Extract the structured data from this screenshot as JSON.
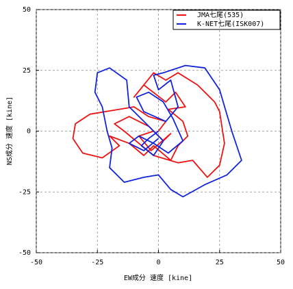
{
  "chart_data": {
    "type": "line",
    "xlabel": "EW成分 速度 [kine]",
    "ylabel": "NS成分 速度 [kine]",
    "xlim": [
      -50,
      50
    ],
    "ylim": [
      -50,
      50
    ],
    "xticks": [
      -50,
      -25,
      0,
      25,
      50
    ],
    "yticks": [
      -50,
      -25,
      0,
      25,
      50
    ],
    "grid": true,
    "legend": "upper right",
    "series": [
      {
        "name": "JMA七尾(535)",
        "color": "#ee1111",
        "x": [
          0,
          3,
          -4,
          -10,
          -16,
          -28,
          -34,
          -35,
          -31,
          -23,
          -16,
          -20,
          -12,
          -6,
          -2,
          5,
          8,
          12,
          10,
          4,
          11,
          7,
          3,
          -6,
          -10,
          -2,
          3,
          8,
          16,
          23,
          25,
          27,
          25,
          20,
          14,
          8,
          -2,
          -8,
          -14,
          -18,
          -12,
          -4,
          2,
          5,
          -3,
          -8,
          -2
        ],
        "y": [
          0,
          4,
          6,
          10,
          9,
          7,
          3,
          -3,
          -9,
          -11,
          -6,
          -2,
          -5,
          -10,
          -6,
          -12,
          -6,
          -2,
          4,
          9,
          10,
          16,
          12,
          19,
          14,
          24,
          21,
          24,
          19,
          12,
          8,
          -5,
          -14,
          -19,
          -12,
          -13,
          -10,
          -5,
          0,
          3,
          6,
          2,
          -4,
          -1,
          -8,
          -2,
          0
        ]
      },
      {
        "name": "K-NET七尾(ISK007)",
        "color": "#1122dd",
        "x": [
          0,
          -4,
          -7,
          -2,
          2,
          -5,
          -12,
          -13,
          -20,
          -25,
          -26,
          -23,
          -21,
          -19,
          -20,
          -14,
          -6,
          0,
          5,
          10,
          19,
          28,
          34,
          30,
          25,
          19,
          11,
          2,
          -2,
          0,
          5,
          8,
          3,
          -6,
          -9,
          -4,
          2,
          6,
          10,
          4,
          -2,
          -8,
          -12,
          -6,
          0
        ],
        "y": [
          0,
          -3,
          -6,
          -10,
          -4,
          3,
          10,
          21,
          26,
          24,
          16,
          10,
          0,
          -7,
          -15,
          -21,
          -19,
          -18,
          -24,
          -27,
          -22,
          -18,
          -12,
          0,
          17,
          26,
          27,
          24,
          23,
          17,
          21,
          10,
          4,
          8,
          14,
          16,
          12,
          5,
          -4,
          -9,
          -5,
          -2,
          -5,
          -8,
          -3
        ]
      }
    ]
  }
}
